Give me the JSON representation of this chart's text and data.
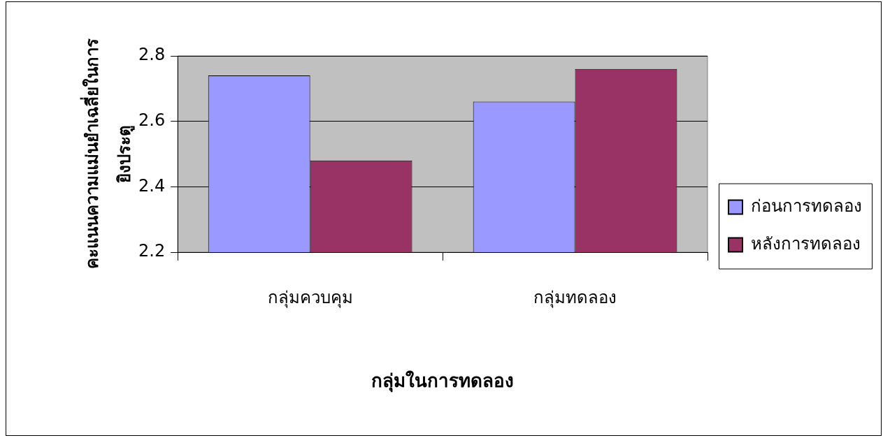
{
  "chart_data": {
    "type": "bar",
    "xlabel": "กลุ่มในการทดลอง",
    "ylabel": "คะแนนความแม่นยำเฉลี่ยในการยิงประตู",
    "categories": [
      "กลุ่มควบคุม",
      "กลุ่มทดลอง"
    ],
    "series": [
      {
        "name": "ก่อนการทดลอง",
        "color": "#9999ff",
        "values": [
          2.74,
          2.66
        ]
      },
      {
        "name": "หลังการทดลอง",
        "color": "#993366",
        "values": [
          2.48,
          2.76
        ]
      }
    ],
    "ylim": [
      2.2,
      2.8
    ],
    "yticks": [
      2.2,
      2.4,
      2.6,
      2.8
    ],
    "grid": "y",
    "legend": "right"
  }
}
